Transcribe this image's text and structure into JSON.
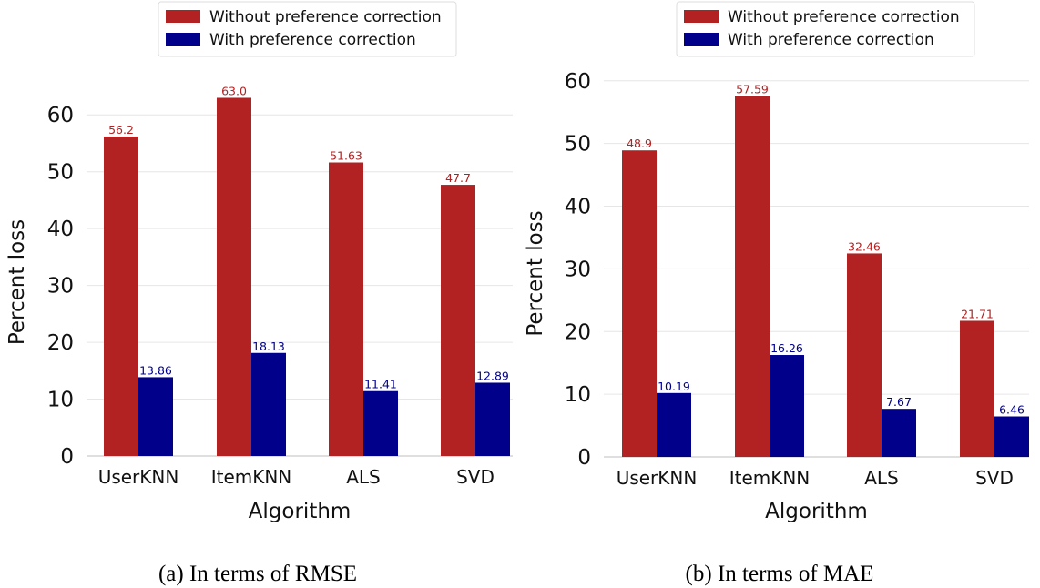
{
  "chart_data": [
    {
      "type": "bar",
      "caption": "(a) In terms of RMSE",
      "xlabel": "Algorithm",
      "ylabel": "Percent loss",
      "categories": [
        "UserKNN",
        "ItemKNN",
        "ALS",
        "SVD"
      ],
      "ylim": [
        0,
        65
      ],
      "yticks": [
        0,
        10,
        20,
        30,
        40,
        50,
        60
      ],
      "grid": true,
      "legend_position": "top-center",
      "series": [
        {
          "name": "Without preference correction",
          "color": "#b22222",
          "values": [
            56.2,
            63.0,
            51.63,
            47.7
          ],
          "labels": [
            "56.2",
            "63.0",
            "51.63",
            "47.7"
          ]
        },
        {
          "name": "With preference correction",
          "color": "#00008b",
          "values": [
            13.86,
            18.13,
            11.41,
            12.89
          ],
          "labels": [
            "13.86",
            "18.13",
            "11.41",
            "12.89"
          ]
        }
      ]
    },
    {
      "type": "bar",
      "caption": "(b) In terms of MAE",
      "xlabel": "Algorithm",
      "ylabel": "Percent loss",
      "categories": [
        "UserKNN",
        "ItemKNN",
        "ALS",
        "SVD"
      ],
      "ylim": [
        0,
        62
      ],
      "yticks": [
        0,
        10,
        20,
        30,
        40,
        50,
        60
      ],
      "grid": true,
      "legend_position": "top-center",
      "series": [
        {
          "name": "Without preference correction",
          "color": "#b22222",
          "values": [
            48.9,
            57.59,
            32.46,
            21.71
          ],
          "labels": [
            "48.9",
            "57.59",
            "32.46",
            "21.71"
          ]
        },
        {
          "name": "With preference correction",
          "color": "#00008b",
          "values": [
            10.19,
            16.26,
            7.67,
            6.46
          ],
          "labels": [
            "10.19",
            "16.26",
            "7.67",
            "6.46"
          ]
        }
      ]
    }
  ]
}
